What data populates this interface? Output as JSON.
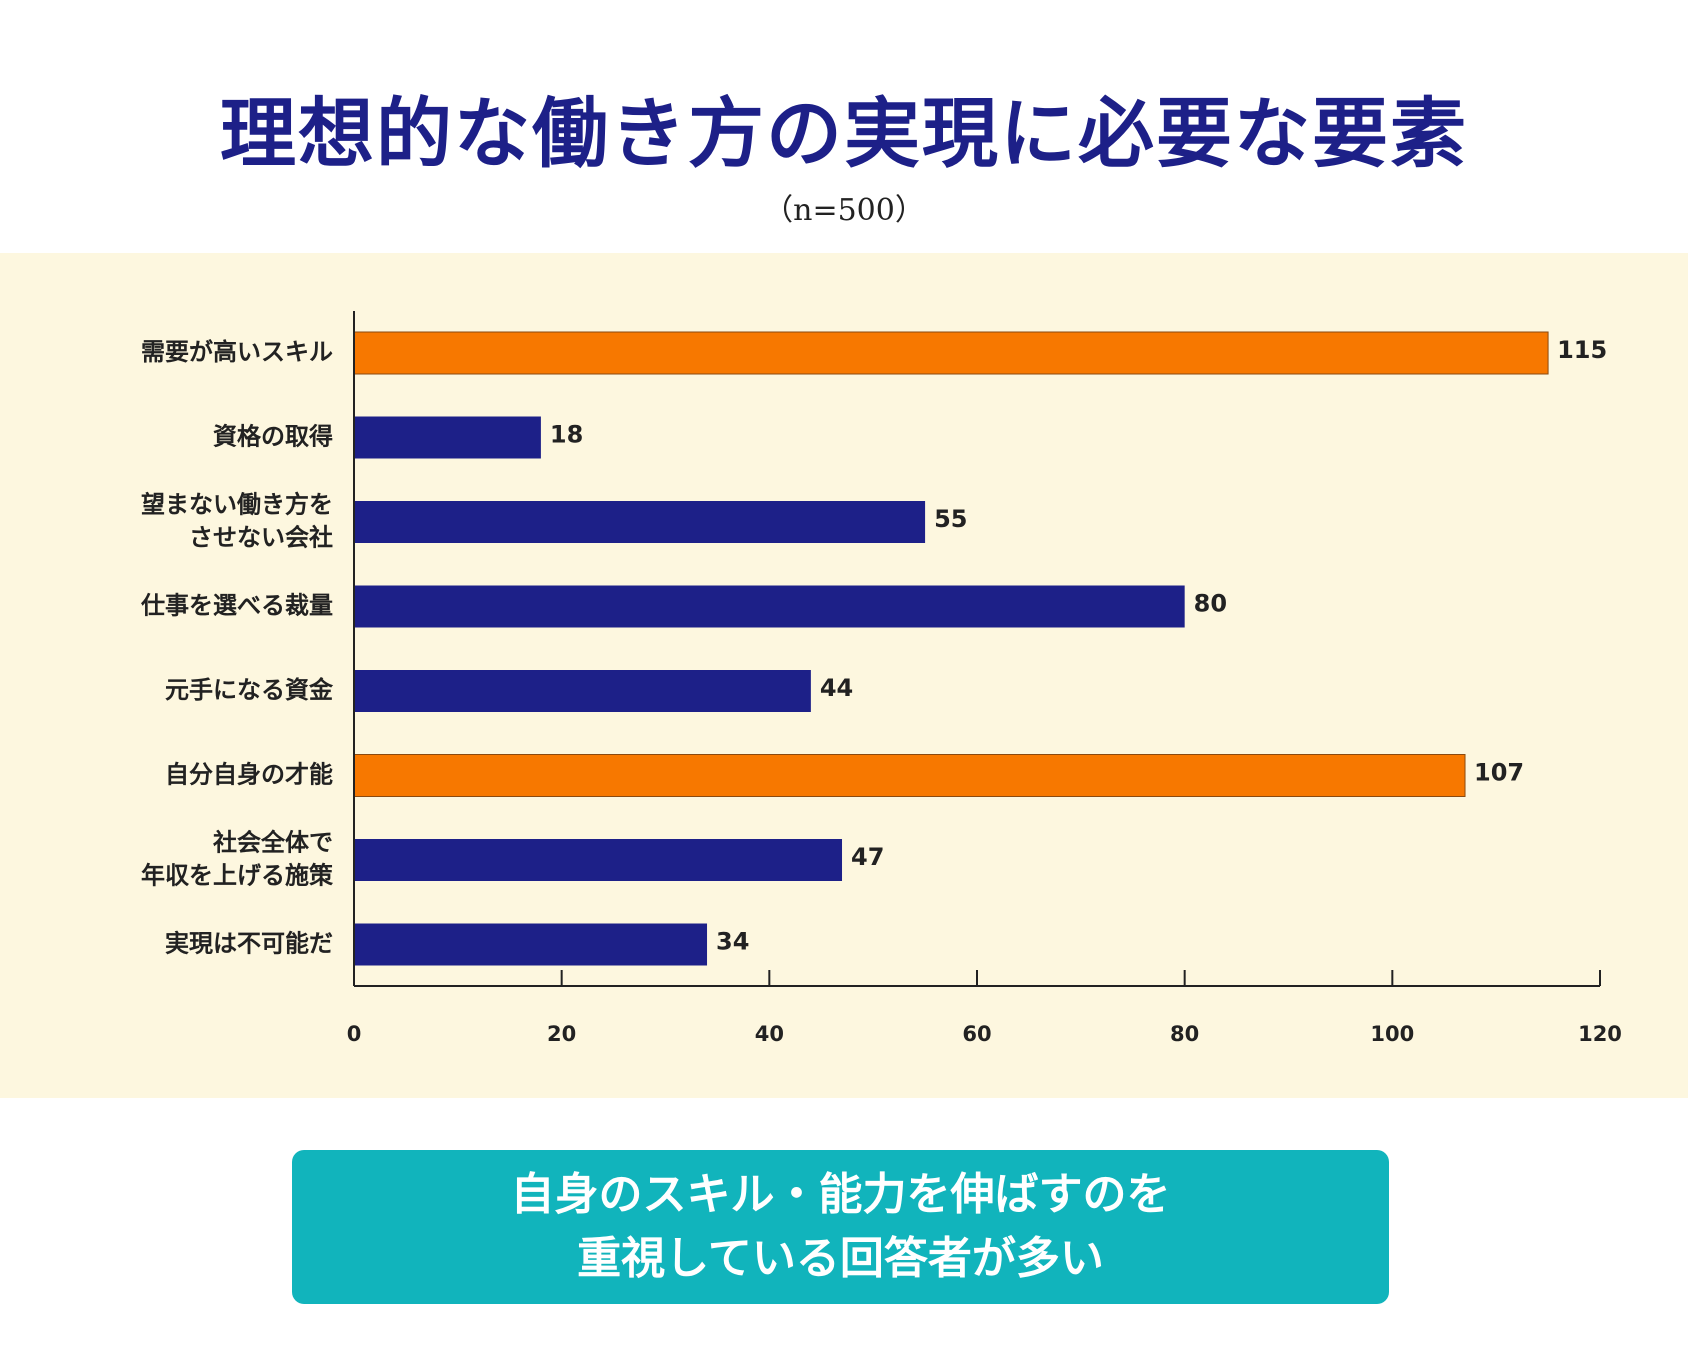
{
  "header": {
    "title": "理想的な働き方の実現に必要な要素",
    "subtitle": "（n=500）"
  },
  "chart_data": {
    "type": "bar",
    "orientation": "horizontal",
    "title": "理想的な働き方の実現に必要な要素",
    "subtitle": "（n=500）",
    "categories": [
      [
        "需要が高いスキル"
      ],
      [
        "資格の取得"
      ],
      [
        "望まない働き方を",
        "させない会社"
      ],
      [
        "仕事を選べる裁量"
      ],
      [
        "元手になる資金"
      ],
      [
        "自分自身の才能"
      ],
      [
        "社会全体で",
        "年収を上げる施策"
      ],
      [
        "実現は不可能だ"
      ]
    ],
    "values": [
      115,
      18,
      55,
      80,
      44,
      107,
      47,
      34
    ],
    "highlighted": [
      true,
      false,
      false,
      false,
      false,
      true,
      false,
      false
    ],
    "xlim": [
      0,
      120
    ],
    "xticks": [
      0,
      20,
      40,
      60,
      80,
      100,
      120
    ],
    "xlabel": "",
    "ylabel": "",
    "grid": false,
    "colors": {
      "normal": "#1d2088",
      "highlight": "#f77800",
      "background": "#fdf7df"
    }
  },
  "callout": {
    "line1": "自身のスキル・能力を伸ばすのを",
    "line2": "重視している回答者が多い"
  }
}
